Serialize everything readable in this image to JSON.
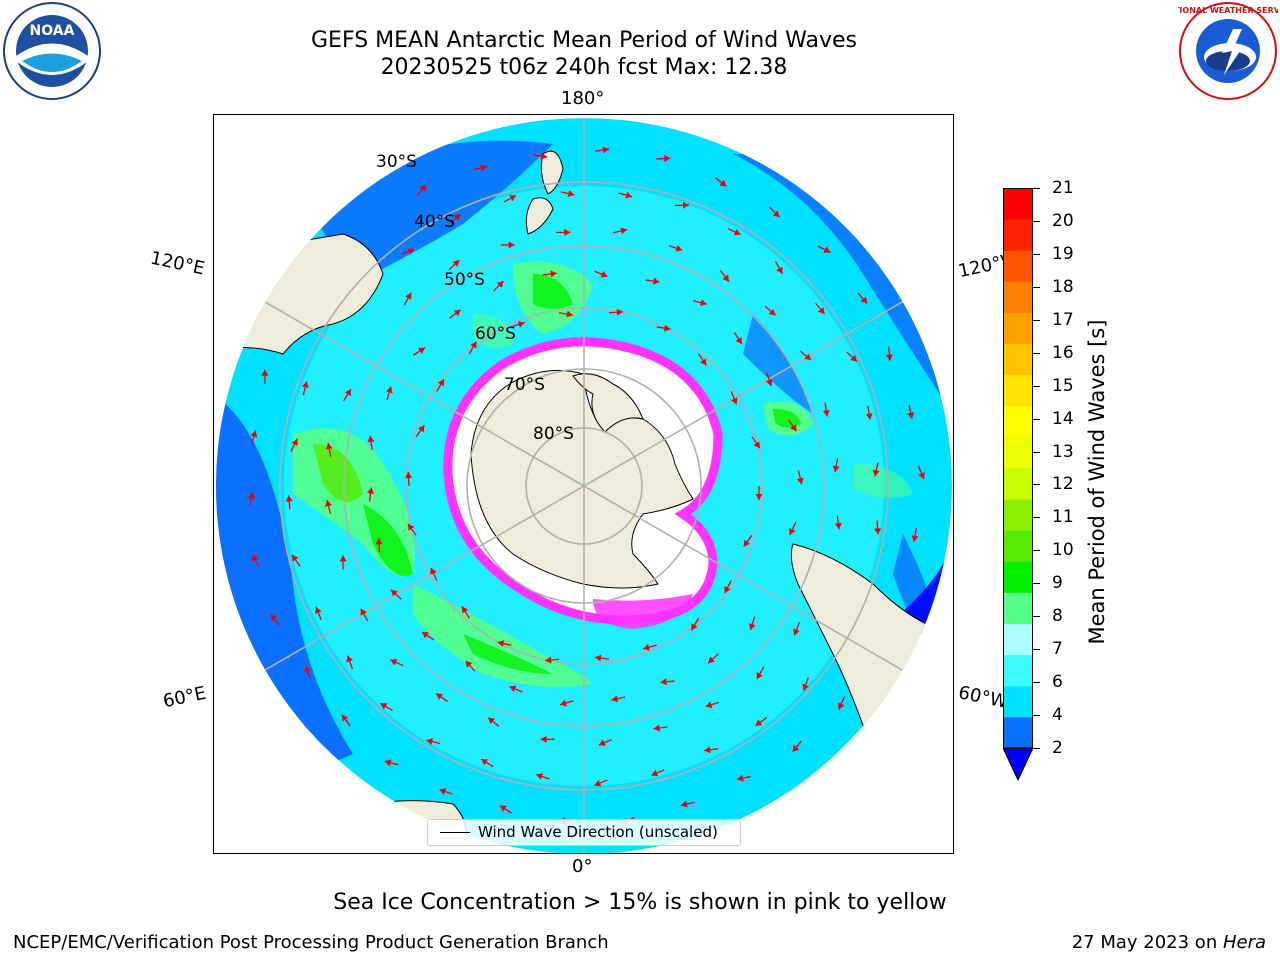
{
  "title": {
    "line1": "GEFS MEAN Antarctic Mean Period of Wind Waves",
    "line2": "20230525 t06z 240h fcst   Max: 12.38"
  },
  "logos": {
    "left": "NOAA",
    "right": "NATIONAL WEATHER SERVICE"
  },
  "map": {
    "projection": "south-polar-stereographic",
    "longitude_labels": {
      "top": "180°",
      "bottom": "0°",
      "upper_left": "120°E",
      "lower_left": "60°E",
      "upper_right": "120°W",
      "lower_right": "60°W"
    },
    "latitude_labels": [
      "30°S",
      "40°S",
      "50°S",
      "60°S",
      "70°S",
      "80°S"
    ],
    "legend_text": "Wind Wave Direction (unscaled)",
    "colors": {
      "land": "#eeecda",
      "sea_ice_low": "#ff33ff",
      "sea_ice_high": "#ffff33",
      "vectors": "#ee0000"
    }
  },
  "colorbar": {
    "label": "Mean Period of Wind Waves [s]",
    "ticks": [
      "2",
      "4",
      "6",
      "7",
      "8",
      "9",
      "10",
      "11",
      "12",
      "13",
      "14",
      "15",
      "16",
      "17",
      "18",
      "19",
      "20",
      "21"
    ],
    "colors": [
      "#0b70ff",
      "#00e1ff",
      "#3cfaff",
      "#aaffff",
      "#55ff88",
      "#00f000",
      "#55ea00",
      "#88f000",
      "#c8ff00",
      "#eaff00",
      "#ffff00",
      "#ffe400",
      "#ffc400",
      "#ffa000",
      "#ff8000",
      "#ff5500",
      "#ff2200",
      "#ff0000"
    ],
    "extend_color": "#0000ff"
  },
  "chart_data": {
    "type": "map",
    "title": "GEFS MEAN Antarctic Mean Period of Wind Waves",
    "subtitle": "20230525 t06z 240h fcst   Max: 12.38",
    "field": "Mean Period of Wind Waves [s]",
    "max": 12.38,
    "range": [
      2,
      21
    ],
    "note": "Sea Ice Concentration > 15% is shown in pink to yellow"
  },
  "footer": {
    "note": "Sea Ice Concentration > 15% is shown in pink to yellow",
    "credit_left": "NCEP/EMC/Verification Post Processing Product Generation Branch",
    "credit_right_prefix": "27 May 2023 on ",
    "credit_right_host": "Hera"
  }
}
